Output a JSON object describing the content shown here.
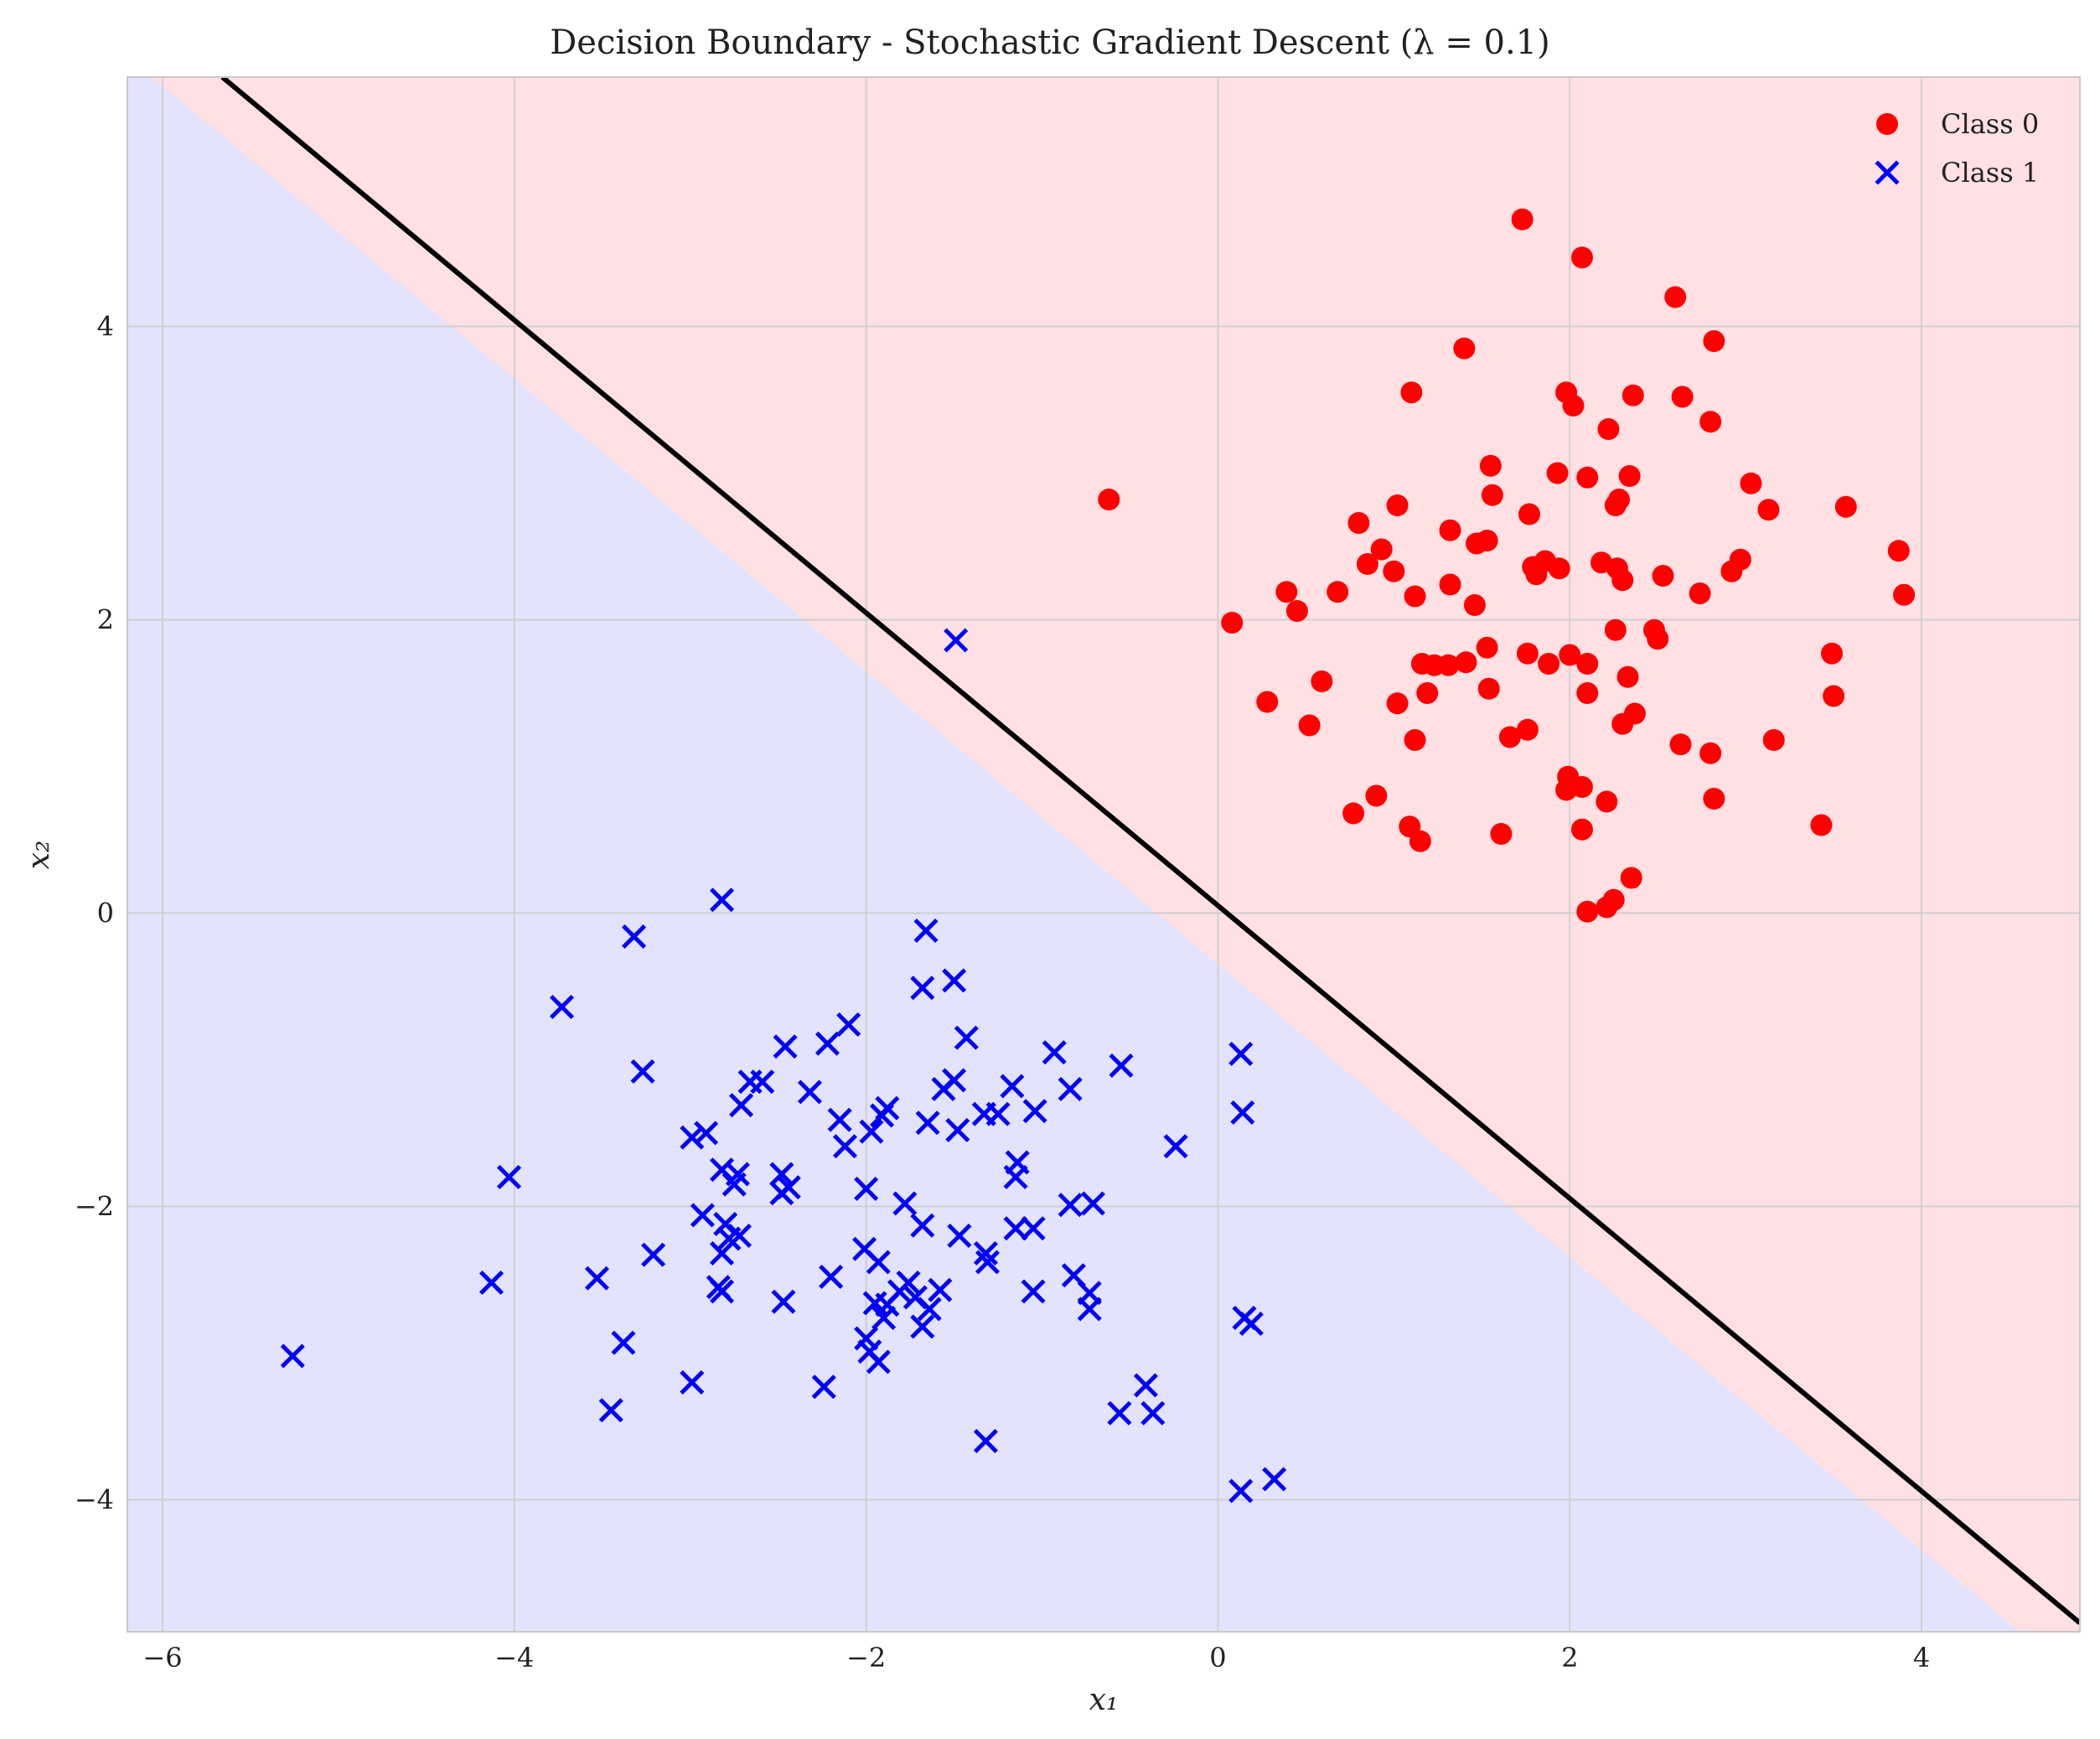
{
  "chart_data": {
    "type": "scatter",
    "title": "Decision Boundary - Stochastic Gradient Descent (λ = 0.1)",
    "xlabel": "x₁",
    "ylabel": "x₂",
    "xlim": [
      -6.2,
      4.9
    ],
    "ylim": [
      -4.9,
      5.7
    ],
    "xticks": [
      -6,
      -4,
      -2,
      0,
      2,
      4
    ],
    "yticks": [
      -4,
      -2,
      0,
      2,
      4
    ],
    "xtick_labels": [
      "−6",
      "−4",
      "−2",
      "0",
      "2",
      "4"
    ],
    "ytick_labels": [
      "−4",
      "−2",
      "0",
      "2",
      "4"
    ],
    "grid": true,
    "legend_position": "top-right",
    "decision_boundary": {
      "x": [
        -5.66,
        4.9
      ],
      "y": [
        5.7,
        -4.84
      ],
      "color": "#000000"
    },
    "region_colors": {
      "class_0": "#ffe0e3",
      "class_1": "#e3e3fd"
    },
    "series": [
      {
        "name": "Class 0",
        "marker": "circle",
        "color": "#ff0000",
        "points": [
          [
            1.73,
            4.73
          ],
          [
            2.07,
            4.47
          ],
          [
            2.6,
            4.2
          ],
          [
            1.4,
            3.85
          ],
          [
            2.82,
            3.9
          ],
          [
            1.1,
            3.55
          ],
          [
            1.98,
            3.55
          ],
          [
            2.36,
            3.53
          ],
          [
            2.64,
            3.52
          ],
          [
            2.02,
            3.46
          ],
          [
            2.22,
            3.3
          ],
          [
            2.8,
            3.35
          ],
          [
            1.55,
            3.05
          ],
          [
            1.93,
            3.0
          ],
          [
            2.1,
            2.97
          ],
          [
            2.34,
            2.98
          ],
          [
            3.03,
            2.93
          ],
          [
            1.56,
            2.85
          ],
          [
            2.28,
            2.82
          ],
          [
            2.26,
            2.78
          ],
          [
            3.13,
            2.75
          ],
          [
            3.57,
            2.77
          ],
          [
            -0.62,
            2.82
          ],
          [
            1.02,
            2.78
          ],
          [
            0.8,
            2.66
          ],
          [
            1.77,
            2.72
          ],
          [
            1.32,
            2.61
          ],
          [
            0.93,
            2.48
          ],
          [
            1.47,
            2.52
          ],
          [
            1.53,
            2.54
          ],
          [
            3.87,
            2.47
          ],
          [
            0.85,
            2.38
          ],
          [
            1.0,
            2.33
          ],
          [
            1.79,
            2.36
          ],
          [
            1.86,
            2.4
          ],
          [
            1.94,
            2.35
          ],
          [
            2.18,
            2.39
          ],
          [
            2.27,
            2.35
          ],
          [
            2.97,
            2.41
          ],
          [
            2.92,
            2.33
          ],
          [
            0.39,
            2.19
          ],
          [
            0.68,
            2.19
          ],
          [
            1.12,
            2.16
          ],
          [
            1.32,
            2.24
          ],
          [
            1.46,
            2.1
          ],
          [
            1.81,
            2.31
          ],
          [
            2.3,
            2.27
          ],
          [
            2.53,
            2.3
          ],
          [
            2.74,
            2.18
          ],
          [
            3.9,
            2.17
          ],
          [
            0.45,
            2.06
          ],
          [
            0.08,
            1.98
          ],
          [
            2.26,
            1.93
          ],
          [
            2.48,
            1.93
          ],
          [
            2.5,
            1.87
          ],
          [
            1.53,
            1.81
          ],
          [
            1.76,
            1.77
          ],
          [
            2.0,
            1.76
          ],
          [
            1.16,
            1.7
          ],
          [
            1.23,
            1.69
          ],
          [
            1.31,
            1.69
          ],
          [
            1.41,
            1.71
          ],
          [
            1.88,
            1.7
          ],
          [
            2.1,
            1.7
          ],
          [
            3.49,
            1.77
          ],
          [
            0.59,
            1.58
          ],
          [
            1.19,
            1.5
          ],
          [
            1.54,
            1.53
          ],
          [
            2.1,
            1.5
          ],
          [
            2.33,
            1.61
          ],
          [
            3.5,
            1.48
          ],
          [
            0.28,
            1.44
          ],
          [
            1.02,
            1.43
          ],
          [
            2.37,
            1.36
          ],
          [
            0.52,
            1.28
          ],
          [
            2.3,
            1.29
          ],
          [
            1.12,
            1.18
          ],
          [
            1.66,
            1.2
          ],
          [
            1.76,
            1.25
          ],
          [
            2.63,
            1.15
          ],
          [
            2.8,
            1.09
          ],
          [
            3.16,
            1.18
          ],
          [
            1.99,
            0.93
          ],
          [
            2.07,
            0.86
          ],
          [
            1.98,
            0.84
          ],
          [
            0.9,
            0.8
          ],
          [
            2.21,
            0.76
          ],
          [
            2.82,
            0.78
          ],
          [
            0.77,
            0.68
          ],
          [
            1.09,
            0.59
          ],
          [
            2.07,
            0.57
          ],
          [
            3.43,
            0.6
          ],
          [
            1.15,
            0.49
          ],
          [
            1.61,
            0.54
          ],
          [
            2.35,
            0.24
          ],
          [
            2.25,
            0.09
          ],
          [
            2.21,
            0.04
          ],
          [
            2.1,
            0.01
          ]
        ]
      },
      {
        "name": "Class 1",
        "marker": "x",
        "color": "#0000ff",
        "points": [
          [
            -1.49,
            1.86
          ],
          [
            -2.82,
            0.09
          ],
          [
            -1.66,
            -0.12
          ],
          [
            -3.32,
            -0.16
          ],
          [
            -1.5,
            -0.46
          ],
          [
            -1.68,
            -0.51
          ],
          [
            -3.73,
            -0.64
          ],
          [
            -2.1,
            -0.76
          ],
          [
            -1.43,
            -0.85
          ],
          [
            -2.22,
            -0.89
          ],
          [
            -2.46,
            -0.91
          ],
          [
            -0.93,
            -0.95
          ],
          [
            0.13,
            -0.96
          ],
          [
            -0.55,
            -1.04
          ],
          [
            -3.27,
            -1.08
          ],
          [
            -2.59,
            -1.15
          ],
          [
            -2.66,
            -1.15
          ],
          [
            -1.5,
            -1.14
          ],
          [
            -1.56,
            -1.2
          ],
          [
            -1.17,
            -1.18
          ],
          [
            -0.84,
            -1.2
          ],
          [
            -2.32,
            -1.22
          ],
          [
            -2.71,
            -1.31
          ],
          [
            -1.88,
            -1.33
          ],
          [
            -1.91,
            -1.38
          ],
          [
            -1.25,
            -1.37
          ],
          [
            -1.33,
            -1.37
          ],
          [
            -1.04,
            -1.35
          ],
          [
            0.14,
            -1.36
          ],
          [
            -2.15,
            -1.41
          ],
          [
            -1.65,
            -1.43
          ],
          [
            -1.48,
            -1.48
          ],
          [
            -1.97,
            -1.49
          ],
          [
            -2.91,
            -1.5
          ],
          [
            -2.99,
            -1.53
          ],
          [
            -2.12,
            -1.59
          ],
          [
            -0.24,
            -1.59
          ],
          [
            -1.14,
            -1.7
          ],
          [
            -2.82,
            -1.75
          ],
          [
            -2.73,
            -1.78
          ],
          [
            -2.48,
            -1.78
          ],
          [
            -1.15,
            -1.8
          ],
          [
            -4.03,
            -1.8
          ],
          [
            -2.75,
            -1.85
          ],
          [
            -2.44,
            -1.87
          ],
          [
            -2.48,
            -1.91
          ],
          [
            -2.0,
            -1.88
          ],
          [
            -1.78,
            -1.98
          ],
          [
            -0.84,
            -1.99
          ],
          [
            -0.71,
            -1.98
          ],
          [
            -2.93,
            -2.06
          ],
          [
            -1.68,
            -2.13
          ],
          [
            -1.15,
            -2.15
          ],
          [
            -1.05,
            -2.15
          ],
          [
            -2.8,
            -2.12
          ],
          [
            -2.72,
            -2.2
          ],
          [
            -2.78,
            -2.22
          ],
          [
            -1.47,
            -2.2
          ],
          [
            -2.01,
            -2.29
          ],
          [
            -1.32,
            -2.32
          ],
          [
            -3.21,
            -2.33
          ],
          [
            -2.82,
            -2.32
          ],
          [
            -1.31,
            -2.38
          ],
          [
            -1.93,
            -2.38
          ],
          [
            -2.2,
            -2.48
          ],
          [
            -0.82,
            -2.47
          ],
          [
            -3.53,
            -2.49
          ],
          [
            -4.13,
            -2.52
          ],
          [
            -1.76,
            -2.52
          ],
          [
            -2.84,
            -2.55
          ],
          [
            -2.82,
            -2.58
          ],
          [
            -1.58,
            -2.57
          ],
          [
            -1.81,
            -2.58
          ],
          [
            -1.05,
            -2.58
          ],
          [
            -0.73,
            -2.59
          ],
          [
            -1.72,
            -2.62
          ],
          [
            -2.47,
            -2.65
          ],
          [
            -1.95,
            -2.66
          ],
          [
            -1.88,
            -2.67
          ],
          [
            -1.64,
            -2.7
          ],
          [
            -0.73,
            -2.7
          ],
          [
            -1.9,
            -2.76
          ],
          [
            0.15,
            -2.76
          ],
          [
            0.19,
            -2.8
          ],
          [
            -1.68,
            -2.82
          ],
          [
            -2.0,
            -2.9
          ],
          [
            -3.38,
            -2.93
          ],
          [
            -1.98,
            -2.99
          ],
          [
            -5.26,
            -3.02
          ],
          [
            -1.93,
            -3.06
          ],
          [
            -2.99,
            -3.2
          ],
          [
            -2.24,
            -3.23
          ],
          [
            -0.41,
            -3.22
          ],
          [
            -3.45,
            -3.39
          ],
          [
            -0.56,
            -3.41
          ],
          [
            -0.37,
            -3.41
          ],
          [
            -1.32,
            -3.6
          ],
          [
            0.32,
            -3.86
          ],
          [
            0.13,
            -3.94
          ]
        ]
      }
    ]
  }
}
